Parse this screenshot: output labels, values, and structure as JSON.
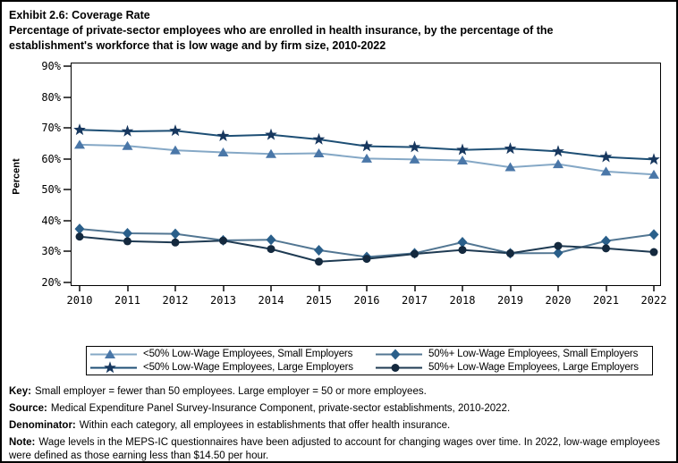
{
  "chart_data": {
    "type": "line",
    "title": "Exhibit 2.6: Coverage Rate",
    "subtitle": "Percentage of private-sector employees who are enrolled in health insurance, by the percentage of the establishment's workforce that is low wage and by firm size, 2010-2022",
    "ylabel": "Percent",
    "x": [
      2010,
      2011,
      2012,
      2013,
      2014,
      2015,
      2016,
      2017,
      2018,
      2019,
      2020,
      2021,
      2022
    ],
    "yticks": [
      90,
      80,
      70,
      60,
      50,
      40,
      30,
      20
    ],
    "ytick_suffix": "%",
    "ylim": [
      18.8,
      91.2
    ],
    "grid": false,
    "legend_position": "bottom",
    "series": [
      {
        "name": "<50% Low-Wage Employees, Small Employers",
        "marker": "triangle",
        "marker_color": "#4a77a8",
        "line_color": "#85a8c6",
        "values": [
          64.6,
          64.2,
          62.8,
          62.1,
          61.6,
          61.8,
          60.1,
          59.8,
          59.5,
          57.3,
          58.3,
          55.9,
          54.9
        ]
      },
      {
        "name": "<50% Low-Wage Employees, Large Employers",
        "marker": "star",
        "marker_color": "#17375e",
        "line_color": "#1d4e74",
        "values": [
          69.4,
          68.9,
          69.1,
          67.4,
          67.8,
          66.3,
          64.1,
          63.8,
          62.9,
          63.3,
          62.4,
          60.6,
          59.8
        ]
      },
      {
        "name": "50%+ Low-Wage Employees, Small Employers",
        "marker": "diamond",
        "marker_color": "#2a5f8a",
        "line_color": "#527692",
        "values": [
          37.3,
          35.9,
          35.7,
          33.6,
          33.8,
          30.4,
          28.2,
          29.4,
          33.0,
          29.4,
          29.5,
          33.4,
          35.5
        ]
      },
      {
        "name": "50%+ Low-Wage Employees, Large Employers",
        "marker": "circle",
        "marker_color": "#14293e",
        "line_color": "#1e3a52",
        "values": [
          34.8,
          33.3,
          32.9,
          33.5,
          30.8,
          26.7,
          27.6,
          29.2,
          30.5,
          29.4,
          31.8,
          31.0,
          29.8
        ]
      }
    ]
  },
  "footer": {
    "notes": [
      {
        "label": "Key:",
        "text": "Small employer = fewer than 50 employees. Large employer = 50 or more employees."
      },
      {
        "label": "Source:",
        "text": "Medical Expenditure Panel Survey-Insurance Component, private-sector establishments, 2010-2022."
      },
      {
        "label": "Denominator:",
        "text": "Within each category, all employees in establishments that offer health insurance."
      },
      {
        "label": "Note:",
        "text": "Wage levels in the MEPS-IC questionnaires have been adjusted to account for changing wages over time. In 2022, low-wage employees were defined as those earning less than $14.50 per hour."
      }
    ]
  }
}
